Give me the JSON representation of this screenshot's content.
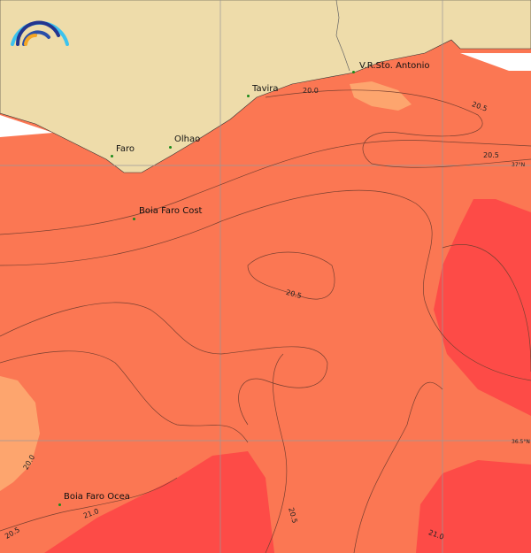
{
  "colors": {
    "land": "#EEDCAA",
    "sea": "#FB7753",
    "warm": "#FD4B47",
    "cool": "#FDA56E",
    "contour": "#7a4030",
    "grid": "#999999"
  },
  "logo": {
    "icon": "rainbow-arc-logo"
  },
  "places": [
    {
      "name": "V.R.Sto. Antonio"
    },
    {
      "name": "Tavira"
    },
    {
      "name": "Olhao"
    },
    {
      "name": "Faro"
    },
    {
      "name": "Boia Faro Cost"
    },
    {
      "name": "Boia Faro Ocea"
    }
  ],
  "grid_labels": {
    "lat1": "37°N",
    "lat2": "36.5°N"
  },
  "contour_labels": [
    "20.0",
    "20.5",
    "20.5",
    "20.5",
    "20.0",
    "20.5",
    "21.0",
    "20.5",
    "21.0"
  ]
}
